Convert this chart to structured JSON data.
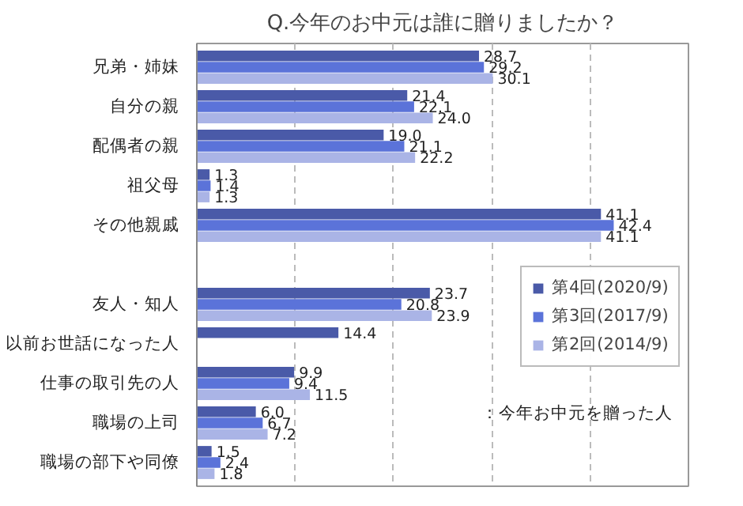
{
  "chart_data": {
    "type": "bar",
    "orientation": "horizontal",
    "title": "Q.今年のお中元は誰に贈りましたか？",
    "categories": [
      "兄弟・姉妹",
      "自分の親",
      "配偶者の親",
      "祖父母",
      "その他親戚",
      null,
      "友人・知人",
      "以前お世話になった人",
      "仕事の取引先の人",
      "職場の上司",
      "職場の部下や同僚"
    ],
    "series": [
      {
        "name": "第4回(2020/9)",
        "color": "#4a5aa8",
        "values": [
          28.7,
          21.4,
          19.0,
          1.3,
          41.1,
          null,
          23.7,
          14.4,
          9.9,
          6.0,
          1.5
        ],
        "value_labels": [
          "28.7",
          "21.4",
          "19.0",
          "1.3",
          "41.1",
          null,
          "23.7",
          "14.4",
          "9.9",
          "6.0",
          "1.5"
        ]
      },
      {
        "name": "第3回(2017/9)",
        "color": "#5b73d9",
        "values": [
          29.2,
          22.1,
          21.1,
          1.4,
          42.4,
          null,
          20.8,
          null,
          9.4,
          6.7,
          2.4
        ],
        "value_labels": [
          "29.2",
          "22.1",
          "21.1",
          "1.4",
          "42.4",
          null,
          "20.8",
          null,
          "9.4",
          "6.7",
          "2.4"
        ]
      },
      {
        "name": "第2回(2014/9)",
        "color": "#aab4e6",
        "values": [
          30.1,
          24.0,
          22.2,
          1.3,
          41.1,
          null,
          23.9,
          null,
          11.5,
          7.2,
          1.8
        ],
        "value_labels": [
          "30.1",
          "24.0",
          "22.2",
          "1.3",
          "41.1",
          null,
          "23.9",
          null,
          "11.5",
          "7.2",
          "1.8"
        ]
      }
    ],
    "xlim": [
      0,
      50
    ],
    "xticks": [
      {
        "value": 0,
        "label": null
      },
      {
        "value": 10,
        "label": null
      },
      {
        "value": 20,
        "label": null
      },
      {
        "value": 30,
        "label": null
      },
      {
        "value": 40,
        "label": null
      },
      {
        "value": 50,
        "label": null
      }
    ],
    "tick_labels": "y",
    "grid": "x",
    "legend": "right",
    "annotations": [
      "：今年お中元を贈った人"
    ]
  }
}
